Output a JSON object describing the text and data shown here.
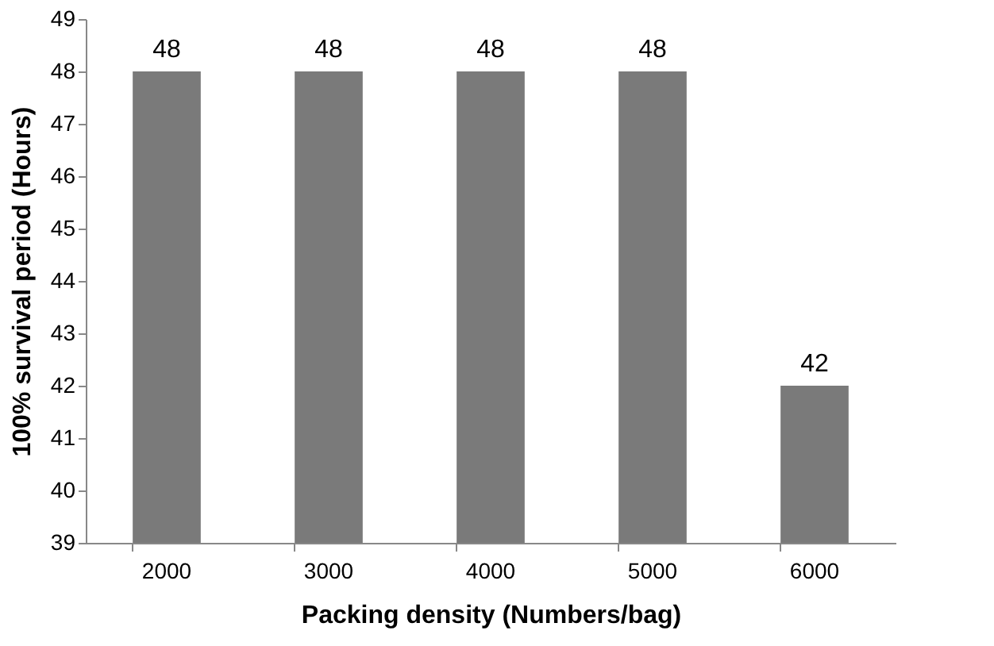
{
  "chart_data": {
    "type": "bar",
    "xlabel": "Packing density (Numbers/bag)",
    "ylabel": "100% survival period (Hours)",
    "categories": [
      "2000",
      "3000",
      "4000",
      "5000",
      "6000"
    ],
    "values": [
      48,
      48,
      48,
      48,
      42
    ],
    "color": "#7a7a7a",
    "ylim": [
      39,
      49
    ],
    "yticks": [
      39,
      40,
      41,
      42,
      43,
      44,
      45,
      46,
      47,
      48,
      49
    ],
    "data_labels": true,
    "grid": false
  }
}
